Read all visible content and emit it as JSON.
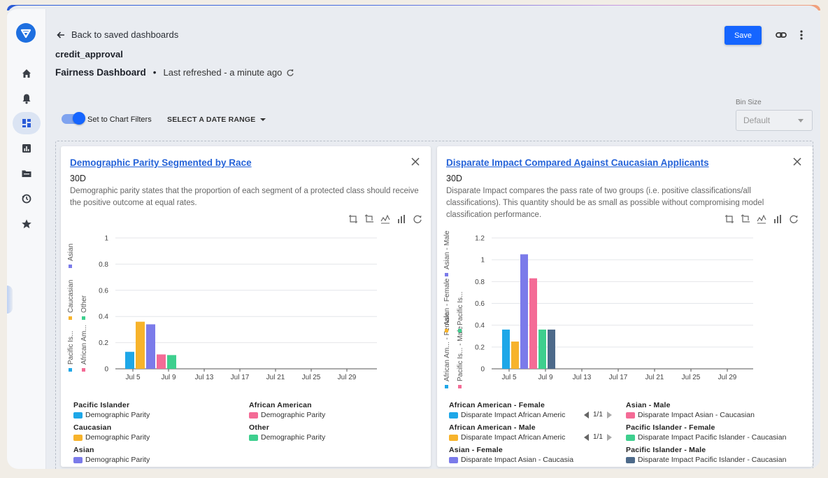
{
  "header": {
    "back_label": "Back to saved dashboards",
    "model_name": "credit_approval",
    "dashboard_title": "Fairness Dashboard",
    "separator": "•",
    "last_refreshed": "Last refreshed - a minute ago",
    "save_label": "Save"
  },
  "filters": {
    "toggle_label": "Set to Chart Filters",
    "date_range_label": "SELECT A DATE RANGE",
    "bin_size_label": "Bin Size",
    "bin_size_value": "Default"
  },
  "sidebar": {
    "items": [
      "home-icon",
      "bell-icon",
      "dashboard-icon",
      "chart-icon",
      "folder-icon",
      "history-icon",
      "star-icon"
    ],
    "active_index": 2
  },
  "colors": {
    "accent": "#1565ff",
    "link": "#2563d8"
  },
  "cards": [
    {
      "title": "Demographic Parity Segmented by Race",
      "period": "30D",
      "description": "Demographic parity states that the proportion of each segment of a protected class should receive the positive outcome at equal rates.",
      "side_legend": [
        "Pacific Is...",
        "Caucasian",
        "Asian",
        "African Am...",
        "Other"
      ],
      "legend": [
        {
          "group": "Pacific Islander",
          "label": "Demographic Parity",
          "color": "#1ea7e8"
        },
        {
          "group": "African American",
          "label": "Demographic Parity",
          "color": "#f46b96"
        },
        {
          "group": "Caucasian",
          "label": "Demographic Parity",
          "color": "#f7b32b"
        },
        {
          "group": "Other",
          "label": "Demographic Parity",
          "color": "#3ecf8e"
        },
        {
          "group": "Asian",
          "label": "Demographic Parity",
          "color": "#7b7bea"
        }
      ]
    },
    {
      "title": "Disparate Impact Compared Against Caucasian Applicants",
      "period": "30D",
      "description": "Disparate Impact compares the pass rate of two groups (i.e. positive classifications/all classifications). This quantity should be as small as possible without compromising model classification performance.",
      "side_legend": [
        "African Am... - Female",
        "Asian - Female",
        "Asian - Male",
        "Pacific Is... - Male",
        "Pacific Is..."
      ],
      "legend": [
        {
          "group": "African American - Female",
          "label": "Disparate Impact African Americ",
          "color": "#1ea7e8"
        },
        {
          "group": "Asian - Male",
          "label": "Disparate Impact Asian - Caucasian",
          "color": "#f46b96"
        },
        {
          "group": "African American - Male",
          "label": "Disparate Impact African Americ",
          "color": "#f7b32b"
        },
        {
          "group": "Pacific Islander - Female",
          "label": "Disparate Impact Pacific Islander - Caucasian",
          "color": "#3ecf8e"
        },
        {
          "group": "Asian - Female",
          "label": "Disparate Impact Asian - Caucasian",
          "color": "#7b7bea"
        },
        {
          "group": "Pacific Islander - Male",
          "label": "Disparate Impact Pacific Islander - Caucasian",
          "color": "#4d6a8a"
        }
      ],
      "pager": "1/1"
    }
  ],
  "chart_data": [
    {
      "type": "bar",
      "title": "Demographic Parity Segmented by Race",
      "x_ticks": [
        "Jul 5",
        "Jul 9",
        "Jul 13",
        "Jul 17",
        "Jul 21",
        "Jul 25",
        "Jul 29"
      ],
      "ylim": [
        0,
        1
      ],
      "y_ticks": [
        0,
        0.2,
        0.4,
        0.6,
        0.8,
        1
      ],
      "grid": true,
      "categories": [
        "Jul 5–Jul 9"
      ],
      "series": [
        {
          "name": "Pacific Islander",
          "values": [
            0.13
          ],
          "color": "#1ea7e8"
        },
        {
          "name": "Caucasian",
          "values": [
            0.36
          ],
          "color": "#f7b32b"
        },
        {
          "name": "Asian",
          "values": [
            0.34
          ],
          "color": "#7b7bea"
        },
        {
          "name": "African American",
          "values": [
            0.11
          ],
          "color": "#f46b96"
        },
        {
          "name": "Other",
          "values": [
            0.105
          ],
          "color": "#3ecf8e"
        }
      ]
    },
    {
      "type": "bar",
      "title": "Disparate Impact Compared Against Caucasian Applicants",
      "x_ticks": [
        "Jul 5",
        "Jul 9",
        "Jul 13",
        "Jul 17",
        "Jul 21",
        "Jul 25",
        "Jul 29"
      ],
      "ylim": [
        0,
        1.2
      ],
      "y_ticks": [
        0,
        0.2,
        0.4,
        0.6,
        0.8,
        1,
        1.2
      ],
      "grid": true,
      "categories": [
        "Jul 5–Jul 9"
      ],
      "series": [
        {
          "name": "African American - Female",
          "values": [
            0.36
          ],
          "color": "#1ea7e8"
        },
        {
          "name": "African American - Male",
          "values": [
            0.25
          ],
          "color": "#f7b32b"
        },
        {
          "name": "Asian - Female",
          "values": [
            1.05
          ],
          "color": "#7b7bea"
        },
        {
          "name": "Asian - Male",
          "values": [
            0.83
          ],
          "color": "#f46b96"
        },
        {
          "name": "Pacific Islander - Female",
          "values": [
            0.36
          ],
          "color": "#3ecf8e"
        },
        {
          "name": "Pacific Islander - Male",
          "values": [
            0.36
          ],
          "color": "#4d6a8a"
        }
      ]
    }
  ]
}
